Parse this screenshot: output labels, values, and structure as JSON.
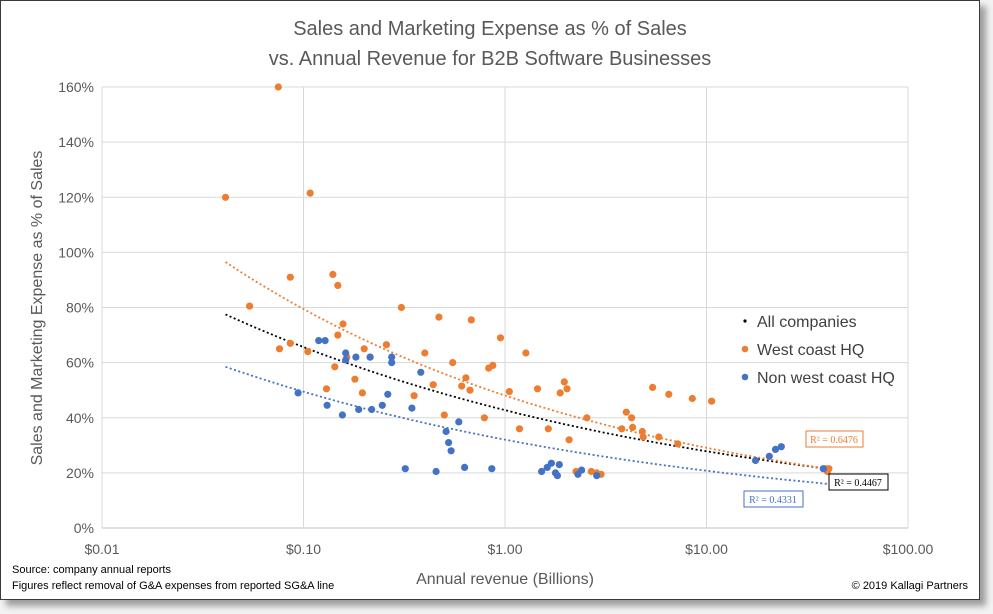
{
  "chart_data": {
    "type": "scatter",
    "title_lines": [
      "Sales and Marketing Expense as % of Sales",
      "vs. Annual Revenue for B2B Software Businesses"
    ],
    "xlabel": "Annual revenue (Billions)",
    "ylabel": "Sales and Marketing Expense as % of Sales",
    "x_scale": "log",
    "xlim": [
      0.01,
      100
    ],
    "ylim": [
      0,
      160
    ],
    "x_ticks": [
      0.01,
      0.1,
      1,
      10,
      100
    ],
    "x_tick_labels": [
      "$0.01",
      "$0.10",
      "$1.00",
      "$10.00",
      "$100.00"
    ],
    "y_ticks": [
      0,
      20,
      40,
      60,
      80,
      100,
      120,
      140,
      160
    ],
    "y_tick_labels": [
      "0%",
      "20%",
      "40%",
      "60%",
      "80%",
      "100%",
      "120%",
      "140%",
      "160%"
    ],
    "grid": true,
    "legend_position": "right",
    "legend": [
      {
        "label": "All companies",
        "color": "#000000",
        "marker": "dot-small"
      },
      {
        "label": "West coast HQ",
        "color": "#ed7d31",
        "marker": "dot"
      },
      {
        "label": "Non west coast HQ",
        "color": "#4472c4",
        "marker": "dot"
      }
    ],
    "series": [
      {
        "name": "West coast HQ",
        "color": "#ed7d31",
        "points": [
          [
            0.041,
            120
          ],
          [
            0.075,
            160
          ],
          [
            0.108,
            121.5
          ],
          [
            0.054,
            80.5
          ],
          [
            0.086,
            91
          ],
          [
            0.076,
            65
          ],
          [
            0.086,
            67
          ],
          [
            0.105,
            64
          ],
          [
            0.14,
            92
          ],
          [
            0.148,
            88
          ],
          [
            0.157,
            74
          ],
          [
            0.164,
            62
          ],
          [
            0.18,
            54
          ],
          [
            0.148,
            70
          ],
          [
            0.13,
            50.5
          ],
          [
            0.143,
            58.5
          ],
          [
            0.196,
            49
          ],
          [
            0.2,
            65
          ],
          [
            0.214,
            62
          ],
          [
            0.258,
            66.5
          ],
          [
            0.306,
            80
          ],
          [
            0.354,
            48
          ],
          [
            0.4,
            63.5
          ],
          [
            0.44,
            52
          ],
          [
            0.47,
            76.5
          ],
          [
            0.5,
            41
          ],
          [
            0.55,
            60
          ],
          [
            0.61,
            51.5
          ],
          [
            0.64,
            54.5
          ],
          [
            0.67,
            50
          ],
          [
            0.68,
            75.5
          ],
          [
            0.79,
            40
          ],
          [
            0.83,
            58
          ],
          [
            0.87,
            59
          ],
          [
            0.95,
            69
          ],
          [
            1.05,
            49.5
          ],
          [
            1.18,
            36
          ],
          [
            1.27,
            63.5
          ],
          [
            1.45,
            50.5
          ],
          [
            1.64,
            36
          ],
          [
            1.88,
            49
          ],
          [
            1.97,
            53
          ],
          [
            2.03,
            50.5
          ],
          [
            2.08,
            32
          ],
          [
            2.25,
            20.5
          ],
          [
            2.55,
            40
          ],
          [
            2.68,
            20.5
          ],
          [
            2.85,
            20
          ],
          [
            3.0,
            19.5
          ],
          [
            3.8,
            36
          ],
          [
            4.0,
            42
          ],
          [
            4.25,
            40
          ],
          [
            4.3,
            36.5
          ],
          [
            4.8,
            35
          ],
          [
            4.85,
            33
          ],
          [
            5.4,
            51
          ],
          [
            5.8,
            33
          ],
          [
            6.5,
            48.5
          ],
          [
            7.2,
            30.5
          ],
          [
            8.5,
            47
          ],
          [
            10.6,
            46
          ],
          [
            39.0,
            21.5
          ],
          [
            39.8,
            20.5
          ],
          [
            40.5,
            21.5
          ]
        ]
      },
      {
        "name": "Non west coast HQ",
        "color": "#4472c4",
        "points": [
          [
            0.094,
            49
          ],
          [
            0.119,
            68
          ],
          [
            0.128,
            68
          ],
          [
            0.131,
            44.5
          ],
          [
            0.156,
            41
          ],
          [
            0.162,
            63.5
          ],
          [
            0.162,
            61
          ],
          [
            0.182,
            62
          ],
          [
            0.188,
            43
          ],
          [
            0.214,
            62
          ],
          [
            0.218,
            43
          ],
          [
            0.246,
            44.5
          ],
          [
            0.262,
            48.5
          ],
          [
            0.274,
            62
          ],
          [
            0.274,
            60
          ],
          [
            0.32,
            21.5
          ],
          [
            0.345,
            43.5
          ],
          [
            0.382,
            56.5
          ],
          [
            0.455,
            20.5
          ],
          [
            0.51,
            35
          ],
          [
            0.525,
            31
          ],
          [
            0.54,
            28
          ],
          [
            0.59,
            38.5
          ],
          [
            0.63,
            22
          ],
          [
            0.86,
            21.5
          ],
          [
            1.52,
            20.5
          ],
          [
            1.62,
            22
          ],
          [
            1.7,
            23.5
          ],
          [
            1.78,
            20
          ],
          [
            1.82,
            19
          ],
          [
            1.86,
            23
          ],
          [
            2.3,
            19.5
          ],
          [
            2.4,
            21
          ],
          [
            2.85,
            19
          ],
          [
            17.5,
            24.5
          ],
          [
            20.5,
            26
          ],
          [
            22.0,
            28.5
          ],
          [
            23.5,
            29.5
          ],
          [
            38.0,
            21.5
          ]
        ]
      }
    ],
    "trendlines": [
      {
        "name": "All companies",
        "color": "#000000",
        "type": "power",
        "x_range": [
          0.041,
          40
        ],
        "y_range": [
          77.5,
          21.5
        ],
        "r2_label": "R² = 0.4467"
      },
      {
        "name": "West coast HQ",
        "color": "#ed7d31",
        "type": "power",
        "x_range": [
          0.041,
          40
        ],
        "y_range": [
          96.5,
          21.5
        ],
        "r2_label": "R² = 0.6476"
      },
      {
        "name": "Non west coast HQ",
        "color": "#4472c4",
        "type": "power",
        "x_range": [
          0.041,
          40
        ],
        "y_range": [
          58.5,
          16
        ],
        "r2_label": "R² = 0.4331"
      }
    ]
  },
  "footer": {
    "source": "Source: company annual reports",
    "note": "Figures reflect removal of G&A expenses from reported SG&A line",
    "copyright": "© 2019 Kallagi Partners"
  }
}
